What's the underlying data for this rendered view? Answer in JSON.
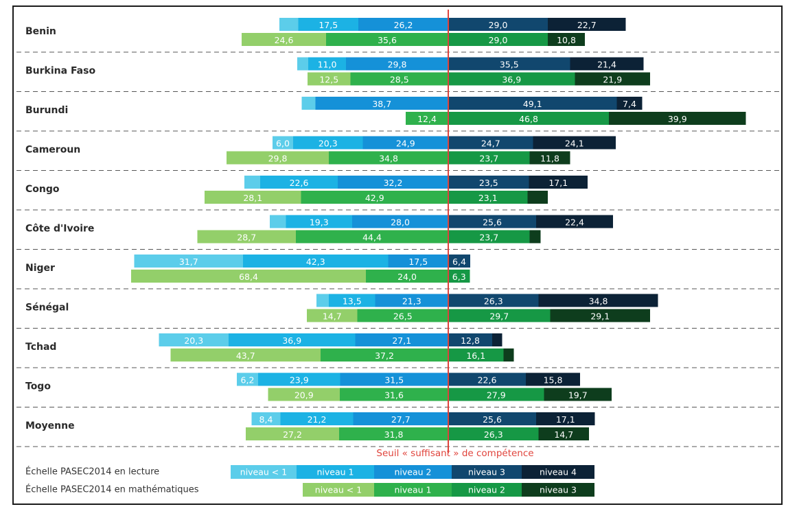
{
  "chart_data": {
    "type": "bar",
    "subtype": "diverging-stacked-horizontal",
    "threshold_label": "Seuil « suffisant » de compétence",
    "series_reading": {
      "legend_label": "Échelle PASEC2014 en lecture",
      "levels": [
        "niveau < 1",
        "niveau 1",
        "niveau 2",
        "niveau 3",
        "niveau 4"
      ],
      "colors": [
        "#5ccdea",
        "#1cb2e4",
        "#1591d8",
        "#11476e",
        "#0c2236"
      ]
    },
    "series_math": {
      "legend_label": "Échelle PASEC2014 en mathématiques",
      "levels": [
        "niveau < 1",
        "niveau 1",
        "niveau 2",
        "niveau 3"
      ],
      "colors": [
        "#93cf6a",
        "#2fb14c",
        "#169845",
        "#0e3d1d"
      ]
    },
    "countries": [
      {
        "name": "Benin",
        "reading": [
          {
            "v": 5.5,
            "label": ""
          },
          {
            "v": 17.5,
            "label": "17,5"
          },
          {
            "v": 26.2,
            "label": "26,2"
          },
          {
            "v": 29.0,
            "label": "29,0"
          },
          {
            "v": 22.7,
            "label": "22,7"
          }
        ],
        "math": [
          {
            "v": 24.6,
            "label": "24,6"
          },
          {
            "v": 35.6,
            "label": "35,6"
          },
          {
            "v": 29.0,
            "label": "29,0"
          },
          {
            "v": 10.8,
            "label": "10,8"
          }
        ]
      },
      {
        "name": "Burkina Faso",
        "reading": [
          {
            "v": 3.2,
            "label": ""
          },
          {
            "v": 11.0,
            "label": "11,0"
          },
          {
            "v": 29.8,
            "label": "29,8"
          },
          {
            "v": 35.5,
            "label": "35,5"
          },
          {
            "v": 21.4,
            "label": "21,4"
          }
        ],
        "math": [
          {
            "v": 12.5,
            "label": "12,5"
          },
          {
            "v": 28.5,
            "label": "28,5"
          },
          {
            "v": 36.9,
            "label": "36,9"
          },
          {
            "v": 21.9,
            "label": "21,9"
          }
        ]
      },
      {
        "name": "Burundi",
        "reading": [
          {
            "v": 4.0,
            "label": ""
          },
          {
            "v": 0.0,
            "label": ""
          },
          {
            "v": 38.7,
            "label": "38,7"
          },
          {
            "v": 49.1,
            "label": "49,1"
          },
          {
            "v": 7.4,
            "label": "7,4"
          }
        ],
        "math": [
          {
            "v": 0.0,
            "label": ""
          },
          {
            "v": 12.4,
            "label": "12,4"
          },
          {
            "v": 46.8,
            "label": "46,8"
          },
          {
            "v": 39.9,
            "label": "39,9"
          }
        ]
      },
      {
        "name": "Cameroun",
        "reading": [
          {
            "v": 6.0,
            "label": "6,0"
          },
          {
            "v": 20.3,
            "label": "20,3"
          },
          {
            "v": 24.9,
            "label": "24,9"
          },
          {
            "v": 24.7,
            "label": "24,7"
          },
          {
            "v": 24.1,
            "label": "24,1"
          }
        ],
        "math": [
          {
            "v": 29.8,
            "label": "29,8"
          },
          {
            "v": 34.8,
            "label": "34,8"
          },
          {
            "v": 23.7,
            "label": "23,7"
          },
          {
            "v": 11.8,
            "label": "11,8"
          }
        ]
      },
      {
        "name": "Congo",
        "reading": [
          {
            "v": 4.6,
            "label": ""
          },
          {
            "v": 22.6,
            "label": "22,6"
          },
          {
            "v": 32.2,
            "label": "32,2"
          },
          {
            "v": 23.5,
            "label": "23,5"
          },
          {
            "v": 17.1,
            "label": "17,1"
          }
        ],
        "math": [
          {
            "v": 28.1,
            "label": "28,1"
          },
          {
            "v": 42.9,
            "label": "42,9"
          },
          {
            "v": 23.1,
            "label": "23,1"
          },
          {
            "v": 5.9,
            "label": ""
          }
        ]
      },
      {
        "name": "Côte d'Ivoire",
        "reading": [
          {
            "v": 4.7,
            "label": ""
          },
          {
            "v": 19.3,
            "label": "19,3"
          },
          {
            "v": 28.0,
            "label": "28,0"
          },
          {
            "v": 25.6,
            "label": "25,6"
          },
          {
            "v": 22.4,
            "label": "22,4"
          }
        ],
        "math": [
          {
            "v": 28.7,
            "label": "28,7"
          },
          {
            "v": 44.4,
            "label": "44,4"
          },
          {
            "v": 23.7,
            "label": "23,7"
          },
          {
            "v": 3.2,
            "label": ""
          }
        ]
      },
      {
        "name": "Niger",
        "reading": [
          {
            "v": 31.7,
            "label": "31,7"
          },
          {
            "v": 42.3,
            "label": "42,3"
          },
          {
            "v": 17.5,
            "label": "17,5"
          },
          {
            "v": 6.4,
            "label": "6,4"
          },
          {
            "v": 0.0,
            "label": ""
          }
        ],
        "math": [
          {
            "v": 68.4,
            "label": "68,4"
          },
          {
            "v": 24.0,
            "label": "24,0"
          },
          {
            "v": 6.3,
            "label": "6,3"
          },
          {
            "v": 0.0,
            "label": ""
          }
        ]
      },
      {
        "name": "Sénégal",
        "reading": [
          {
            "v": 3.6,
            "label": ""
          },
          {
            "v": 13.5,
            "label": "13,5"
          },
          {
            "v": 21.3,
            "label": "21,3"
          },
          {
            "v": 26.3,
            "label": "26,3"
          },
          {
            "v": 34.8,
            "label": "34,8"
          }
        ],
        "math": [
          {
            "v": 14.7,
            "label": "14,7"
          },
          {
            "v": 26.5,
            "label": "26,5"
          },
          {
            "v": 29.7,
            "label": "29,7"
          },
          {
            "v": 29.1,
            "label": "29,1"
          }
        ]
      },
      {
        "name": "Tchad",
        "reading": [
          {
            "v": 20.3,
            "label": "20,3"
          },
          {
            "v": 36.9,
            "label": "36,9"
          },
          {
            "v": 27.1,
            "label": "27,1"
          },
          {
            "v": 12.8,
            "label": "12,8"
          },
          {
            "v": 2.9,
            "label": ""
          }
        ],
        "math": [
          {
            "v": 43.7,
            "label": "43,7"
          },
          {
            "v": 37.2,
            "label": "37,2"
          },
          {
            "v": 16.1,
            "label": "16,1"
          },
          {
            "v": 3.0,
            "label": ""
          }
        ]
      },
      {
        "name": "Togo",
        "reading": [
          {
            "v": 6.2,
            "label": "6,2"
          },
          {
            "v": 23.9,
            "label": "23,9"
          },
          {
            "v": 31.5,
            "label": "31,5"
          },
          {
            "v": 22.6,
            "label": "22,6"
          },
          {
            "v": 15.8,
            "label": "15,8"
          }
        ],
        "math": [
          {
            "v": 20.9,
            "label": "20,9"
          },
          {
            "v": 31.6,
            "label": "31,6"
          },
          {
            "v": 27.9,
            "label": "27,9"
          },
          {
            "v": 19.7,
            "label": "19,7"
          }
        ]
      },
      {
        "name": "Moyenne",
        "reading": [
          {
            "v": 8.4,
            "label": "8,4"
          },
          {
            "v": 21.2,
            "label": "21,2"
          },
          {
            "v": 27.7,
            "label": "27,7"
          },
          {
            "v": 25.6,
            "label": "25,6"
          },
          {
            "v": 17.1,
            "label": "17,1"
          }
        ],
        "math": [
          {
            "v": 27.2,
            "label": "27,2"
          },
          {
            "v": 31.8,
            "label": "31,8"
          },
          {
            "v": 26.3,
            "label": "26,3"
          },
          {
            "v": 14.7,
            "label": "14,7"
          }
        ]
      }
    ],
    "threshold_color": "#e0433b",
    "grid": "dashed-separators",
    "legend": "bottom"
  }
}
